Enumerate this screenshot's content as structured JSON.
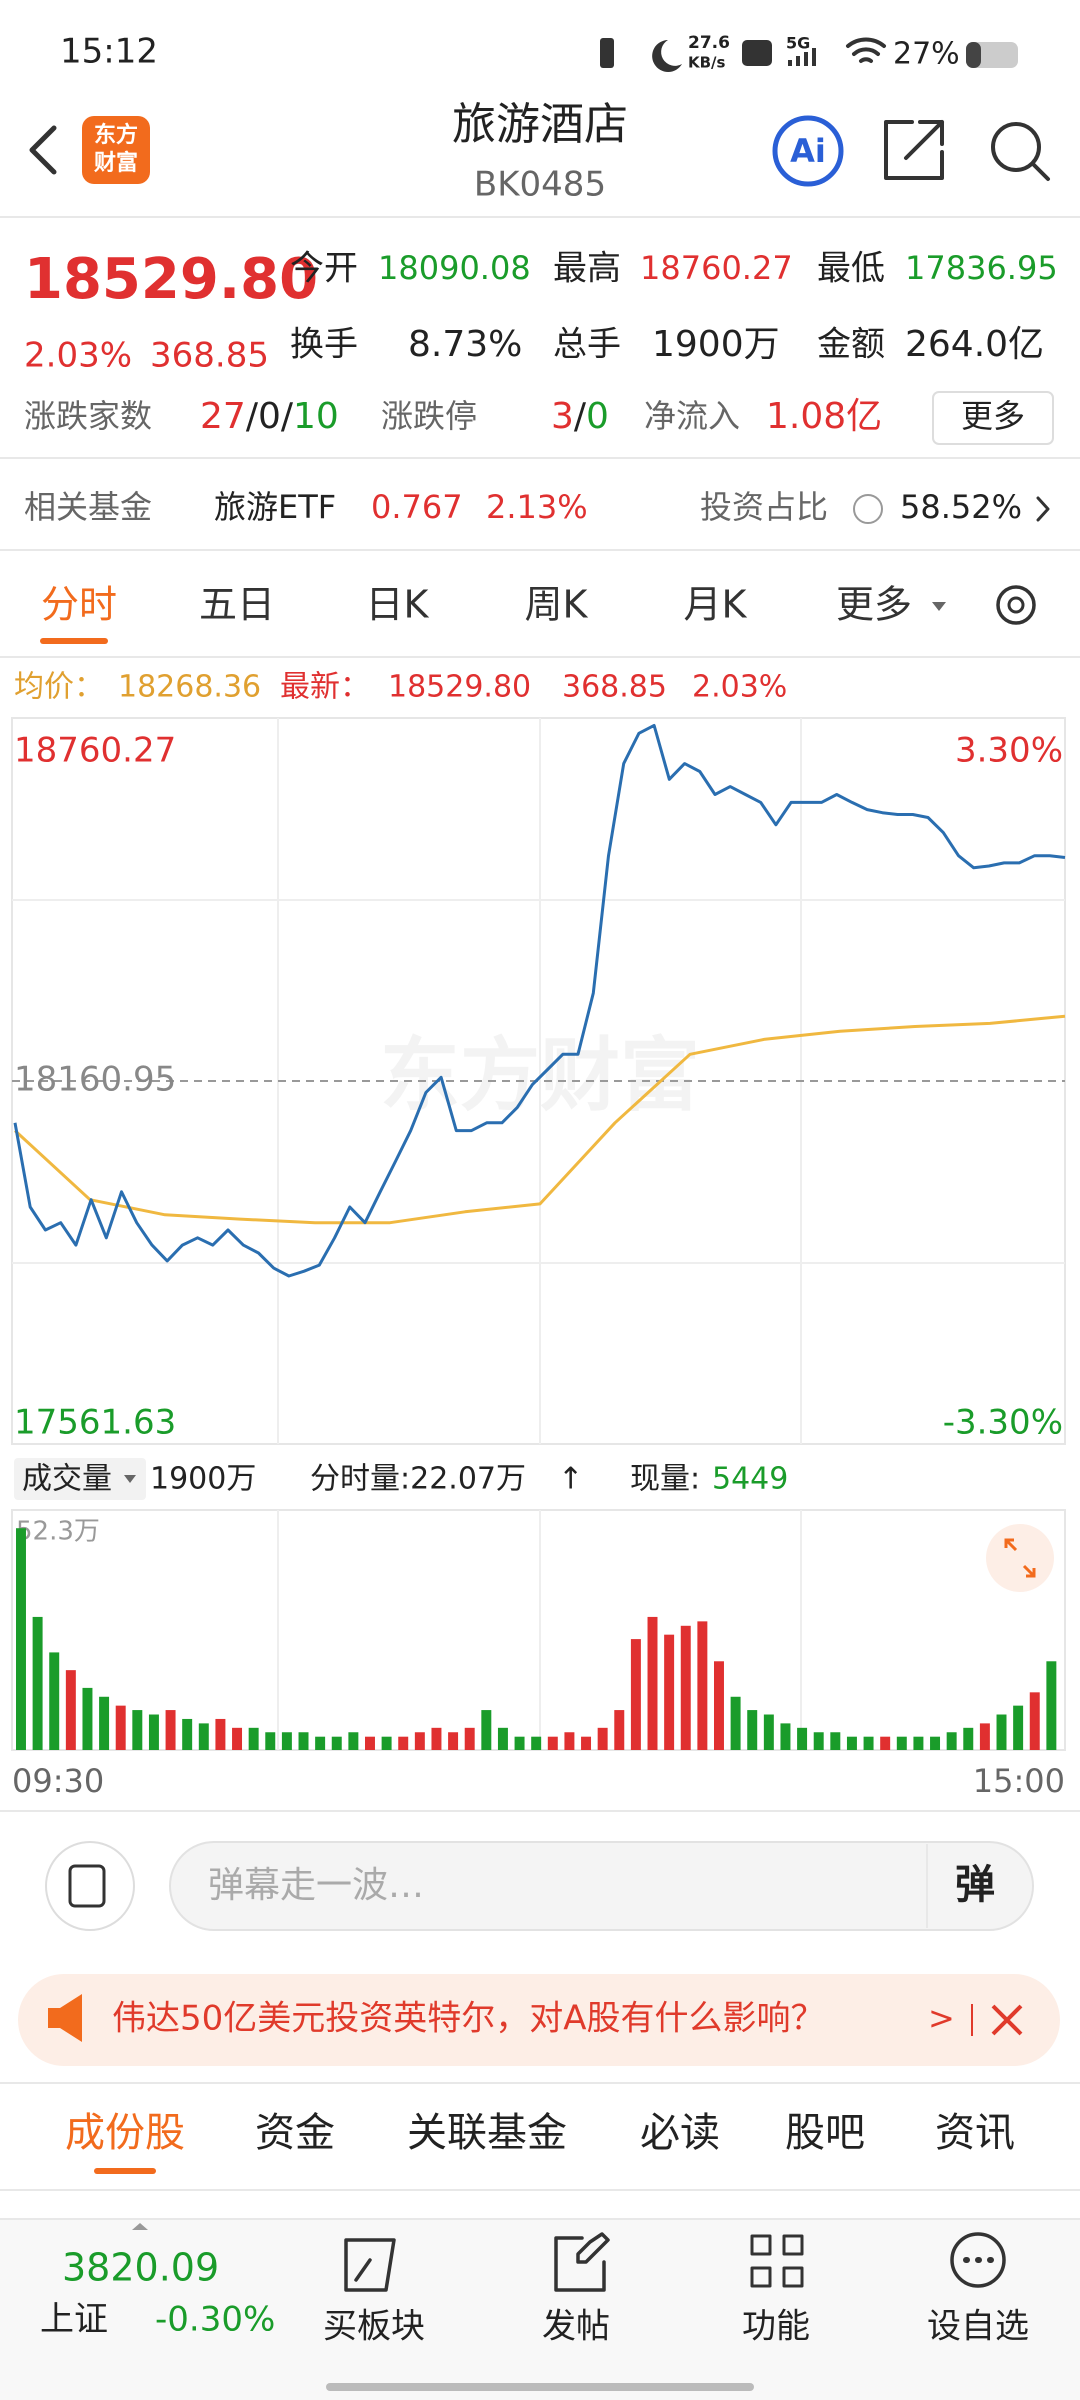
{
  "status": {
    "time": "15:12",
    "speed": "27.6",
    "speed_unit": "KB/s",
    "network": "5G",
    "battery": "27%"
  },
  "header": {
    "logo": [
      "东方",
      "财富"
    ],
    "title": "旅游酒店",
    "code": "BK0485",
    "ai": "Ai"
  },
  "quote": {
    "price": "18529.80",
    "change_pct": "2.03%",
    "change": "368.85",
    "row1": [
      {
        "label": "今开",
        "value": "18090.08"
      },
      {
        "label": "最高",
        "value": "18760.27"
      },
      {
        "label": "最低",
        "value": "17836.95"
      }
    ],
    "row2": [
      {
        "label": "换手",
        "value": "8.73%"
      },
      {
        "label": "总手",
        "value": "1900万"
      },
      {
        "label": "金额",
        "value": "264.0亿"
      }
    ],
    "breadth_label": "涨跌家数",
    "breadth": [
      "27",
      "/",
      "0",
      "/",
      "10"
    ],
    "limit_label": "涨跌停",
    "limit": [
      "3",
      "/",
      "0"
    ],
    "inflow_label": "净流入",
    "inflow": "1.08亿",
    "more": "更多"
  },
  "fund": {
    "label": "相关基金",
    "name": "旅游ETF",
    "price": "0.767",
    "pct": "2.13%",
    "ratio_label": "投资占比",
    "ratio": "58.52%"
  },
  "tabs": [
    "分时",
    "五日",
    "日K",
    "周K",
    "月K",
    "更多"
  ],
  "legend": {
    "avg_label": "均价：",
    "avg": "18268.36",
    "latest_label": "最新：",
    "latest": "18529.80",
    "change": "368.85",
    "pct": "2.03%"
  },
  "intraday": {
    "ylim": [
      17561.63,
      18760.27
    ],
    "yticks": [
      17561.63,
      18160.95,
      18760.27
    ],
    "y2lim": [
      -3.3,
      3.3
    ],
    "y2ticks": [
      {
        "value": -3.3,
        "label": "-3.30%"
      },
      {
        "value": 3.3,
        "label": "3.30%"
      }
    ],
    "watermark": "东方财富",
    "times": [
      "09:30",
      "15:00"
    ],
    "price": {
      "color": "#2a6eb0",
      "values": [
        18092,
        17953,
        17915,
        17927,
        17890,
        17965,
        17902,
        17978,
        17927,
        17890,
        17864,
        17890,
        17902,
        17890,
        17915,
        17890,
        17877,
        17852,
        17839,
        17847,
        17857,
        17902,
        17953,
        17927,
        17978,
        18028,
        18079,
        18142,
        18167,
        18079,
        18079,
        18092,
        18092,
        18117,
        18155,
        18180,
        18205,
        18205,
        18306,
        18533,
        18685,
        18735,
        18748,
        18659,
        18685,
        18672,
        18634,
        18647,
        18634,
        18621,
        18584,
        18621,
        18621,
        18621,
        18634,
        18621,
        18609,
        18604,
        18601,
        18601,
        18596,
        18571,
        18533,
        18513,
        18516,
        18521,
        18521,
        18533,
        18533,
        18530
      ]
    },
    "average": {
      "color": "#f0b840",
      "values": [
        18079,
        17965,
        17940,
        17933,
        17927,
        17927,
        17945,
        17958,
        18092,
        18205,
        18230,
        18243,
        18251,
        18256,
        18268
      ]
    }
  },
  "volume": {
    "label": "成交量",
    "total": "1900万",
    "minute": "分时量:22.07万",
    "arrow": "↑",
    "now_label": "现量:",
    "now": "5449",
    "ylim": [
      0,
      52.3
    ],
    "ytick": {
      "value": 52.3,
      "label": "52.3万"
    },
    "values": [
      50,
      30,
      22,
      18,
      14,
      12,
      10,
      9,
      8,
      9,
      7,
      6,
      7,
      5,
      5,
      4,
      4,
      4,
      3,
      3,
      4,
      3,
      3,
      3,
      4,
      5,
      4,
      5,
      9,
      5,
      3,
      3,
      3,
      4,
      3,
      5,
      9,
      25,
      30,
      26,
      28,
      29,
      20,
      12,
      9,
      8,
      6,
      5,
      4,
      4,
      3,
      3,
      3,
      3,
      3,
      3,
      4,
      5,
      6,
      8,
      10,
      13,
      20
    ],
    "colors": [
      "#1a9c2a",
      "#1a9c2a",
      "#1a9c2a",
      "#e03030",
      "#1a9c2a",
      "#1a9c2a",
      "#e03030",
      "#1a9c2a",
      "#1a9c2a",
      "#e03030",
      "#1a9c2a",
      "#1a9c2a",
      "#e03030",
      "#e03030",
      "#1a9c2a",
      "#1a9c2a",
      "#1a9c2a",
      "#1a9c2a",
      "#1a9c2a",
      "#1a9c2a",
      "#1a9c2a",
      "#e03030",
      "#1a9c2a",
      "#e03030",
      "#e03030",
      "#e03030",
      "#e03030",
      "#e03030",
      "#1a9c2a",
      "#1a9c2a",
      "#1a9c2a",
      "#1a9c2a",
      "#e03030",
      "#e03030",
      "#e03030",
      "#e03030",
      "#e03030",
      "#e03030",
      "#e03030",
      "#e03030",
      "#e03030",
      "#e03030",
      "#e03030",
      "#1a9c2a",
      "#1a9c2a",
      "#1a9c2a",
      "#1a9c2a",
      "#1a9c2a",
      "#1a9c2a",
      "#1a9c2a",
      "#1a9c2a",
      "#1a9c2a",
      "#e03030",
      "#1a9c2a",
      "#1a9c2a",
      "#1a9c2a",
      "#1a9c2a",
      "#1a9c2a",
      "#e03030",
      "#1a9c2a",
      "#1a9c2a",
      "#e03030",
      "#1a9c2a"
    ]
  },
  "danmaku": {
    "placeholder": "弹幕走一波…",
    "button": "弹"
  },
  "news": {
    "text": "伟达50亿美元投资英特尔，对A股有什么影响？",
    "arrow": ">"
  },
  "bottom_tabs": [
    "成份股",
    "资金",
    "关联基金",
    "必读",
    "股吧",
    "资讯"
  ],
  "bottom_bar": {
    "index": "3820.09",
    "name": "上证",
    "pct": "-0.30%",
    "nav": [
      "买板块",
      "发帖",
      "功能",
      "设自选"
    ]
  }
}
